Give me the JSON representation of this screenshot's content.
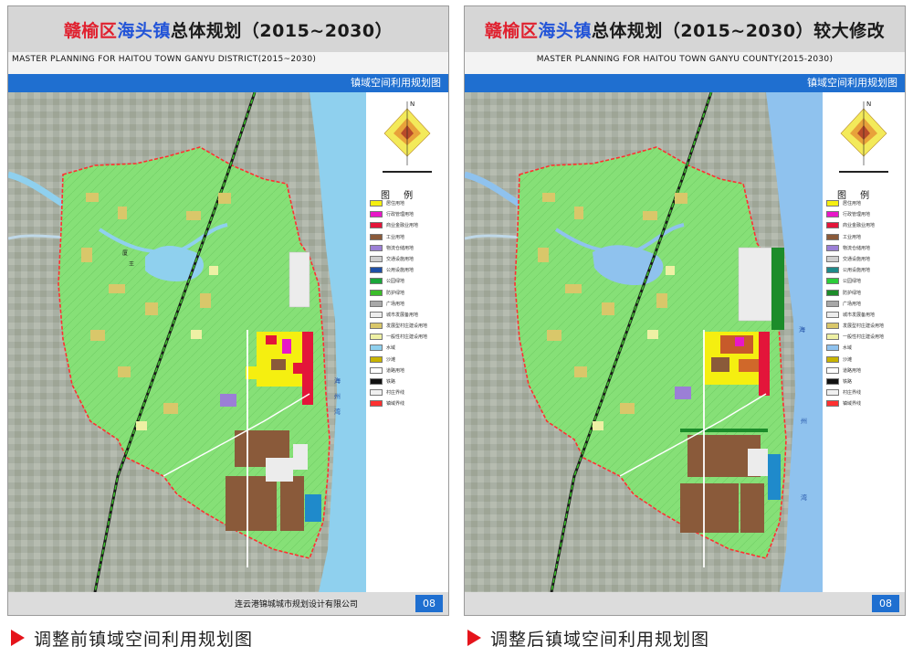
{
  "left": {
    "title": {
      "part1": "赣榆区",
      "part2": "海头镇",
      "part3": "总体规划（2015~2030）",
      "suffix": ""
    },
    "subtitle": "MASTER PLANNING FOR HAITOU TOWN GANYU DISTRICT(2015~2030)",
    "sheet_label": "镇域空间利用规划图",
    "company": "连云港锦城城市规划设计有限公司",
    "page": "08",
    "caption": "调整前镇域空间利用规划图",
    "legend_title": "图 例",
    "legend": [
      {
        "label": "居住用地",
        "color": "#f5ef10"
      },
      {
        "label": "行政管理用地",
        "color": "#e817c8"
      },
      {
        "label": "商业金融业用地",
        "color": "#e3153a"
      },
      {
        "label": "工业用地",
        "color": "#8a5a3a"
      },
      {
        "label": "物流仓储用地",
        "color": "#9b7fd6"
      },
      {
        "label": "交通设施用地",
        "color": "#cfcfcf"
      },
      {
        "label": "公用设施用地",
        "color": "#1f4fa6"
      },
      {
        "label": "公园绿地",
        "color": "#1aa63a"
      },
      {
        "label": "防护绿地",
        "color": "#3bbd2a"
      },
      {
        "label": "广场用地",
        "color": "#a8a8a8"
      },
      {
        "label": "城市发展备用地",
        "color": "#ececec"
      },
      {
        "label": "发展型村庄建设用地",
        "color": "#d9c76a"
      },
      {
        "label": "一般性村庄建设用地",
        "color": "#eef0a4"
      },
      {
        "label": "水域",
        "color": "#8fd0ee"
      },
      {
        "label": "沙滩",
        "color": "#c8b400"
      },
      {
        "label": "道路用地",
        "color": "#ffffff"
      },
      {
        "label": "铁路",
        "color": "#111111"
      },
      {
        "label": "村庄界线",
        "color": "#f0f0f0"
      },
      {
        "label": "镇域界线",
        "color": "#ff3030"
      }
    ],
    "map_labels": {
      "sea_char1": "海",
      "sea_char2": "州",
      "sea_char3": "湾",
      "river_char1": "厦",
      "river_char2": "王"
    }
  },
  "right": {
    "title": {
      "part1": "赣榆区",
      "part2": "海头镇",
      "part3": "总体规划（2015~2030）",
      "suffix": "较大修改"
    },
    "subtitle": "MASTER PLANNING FOR HAITOU TOWN GANYU COUNTY(2015-2030)",
    "sheet_label": "镇域空间利用规划图",
    "company": "",
    "page": "08",
    "caption": "调整后镇域空间利用规划图",
    "legend_title": "图 例",
    "legend": [
      {
        "label": "居住用地",
        "color": "#f5ef10"
      },
      {
        "label": "行政管理用地",
        "color": "#e817c8"
      },
      {
        "label": "商业金融业用地",
        "color": "#e3153a"
      },
      {
        "label": "工业用地",
        "color": "#8a5a3a"
      },
      {
        "label": "物流仓储用地",
        "color": "#9b7fd6"
      },
      {
        "label": "交通设施用地",
        "color": "#cfcfcf"
      },
      {
        "label": "公用设施用地",
        "color": "#1f8a8a"
      },
      {
        "label": "公园绿地",
        "color": "#2ccd3a"
      },
      {
        "label": "防护绿地",
        "color": "#1c8c2a"
      },
      {
        "label": "广场用地",
        "color": "#a8a8a8"
      },
      {
        "label": "城市发展备用地",
        "color": "#ececec"
      },
      {
        "label": "发展型村庄建设用地",
        "color": "#d9c76a"
      },
      {
        "label": "一般性村庄建设用地",
        "color": "#eef0a4"
      },
      {
        "label": "水域",
        "color": "#8fc2ee"
      },
      {
        "label": "沙滩",
        "color": "#c8b400"
      },
      {
        "label": "道路用地",
        "color": "#ffffff"
      },
      {
        "label": "铁路",
        "color": "#111111"
      },
      {
        "label": "村庄界线",
        "color": "#f0f0f0"
      },
      {
        "label": "镇域界线",
        "color": "#ff3030"
      }
    ],
    "map_labels": {
      "sea_char1": "海",
      "sea_char2": "州",
      "sea_char3": "湾",
      "river_char1": "",
      "river_char2": ""
    }
  },
  "colors": {
    "title_red": "#e0202e",
    "title_blue": "#2254d8",
    "bar_blue": "#1f6fd0",
    "boundary_red": "#ff3030",
    "sea": "#8fd0ee",
    "farmland": "#7fdc6e"
  }
}
